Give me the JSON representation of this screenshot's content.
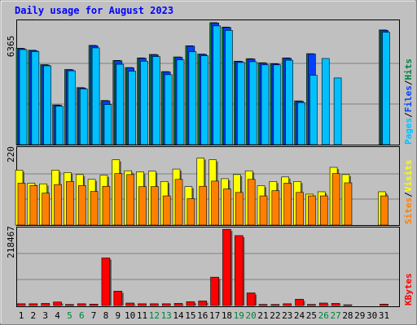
{
  "title": "Daily usage for August 2023",
  "colors": {
    "background": "#c0c0c0",
    "title": "#0000ff",
    "hits": "#008040",
    "files": "#0040ff",
    "pages": "#00c0ff",
    "visits": "#ffff00",
    "sites": "#ff8000",
    "kbytes": "#ff0000",
    "weekend_day_label": "#008040",
    "weekday_label": "#000000"
  },
  "chart_data": [
    {
      "type": "bar",
      "ylabel_max": "6365",
      "ylim": [
        0,
        6365
      ],
      "legend": {
        "pages": "Pages",
        "files": "Files",
        "hits": "Hits",
        "sep": "/"
      },
      "categories": [
        "1",
        "2",
        "3",
        "4",
        "5",
        "6",
        "7",
        "8",
        "9",
        "10",
        "11",
        "12",
        "13",
        "14",
        "15",
        "16",
        "17",
        "18",
        "19",
        "20",
        "21",
        "22",
        "23",
        "24",
        "25",
        "26",
        "27",
        "28",
        "29",
        "30",
        "31"
      ],
      "weekend_days": [
        "5",
        "6",
        "12",
        "13",
        "19",
        "20",
        "26",
        "27"
      ],
      "series": [
        {
          "name": "Hits",
          "values": [
            5000,
            4900,
            4150,
            2060,
            3900,
            2960,
            5150,
            2290,
            4370,
            4000,
            4500,
            4680,
            3790,
            4550,
            5130,
            4700,
            6330,
            6100,
            4330,
            4460,
            4250,
            4200,
            4500,
            2270,
            4720,
            0,
            0,
            0,
            0,
            0,
            5950
          ]
        },
        {
          "name": "Files",
          "values": [
            4980,
            4880,
            4130,
            2040,
            3880,
            2940,
            5130,
            2270,
            4350,
            3980,
            4480,
            4660,
            3770,
            4530,
            5110,
            4680,
            6310,
            6080,
            4310,
            4440,
            4230,
            4180,
            4480,
            2250,
            4700,
            0,
            0,
            0,
            0,
            0,
            5930
          ]
        },
        {
          "name": "Pages",
          "values": [
            4930,
            4830,
            4090,
            1990,
            3830,
            2890,
            5020,
            2080,
            4170,
            3810,
            4330,
            4570,
            3630,
            4400,
            4820,
            4610,
            6160,
            5930,
            4260,
            4300,
            4140,
            4140,
            4380,
            2180,
            3600,
            4470,
            3460,
            0,
            0,
            0,
            5830
          ]
        }
      ]
    },
    {
      "type": "bar",
      "ylabel_max": "220",
      "ylim": [
        0,
        220
      ],
      "legend": {
        "sites": "Sites",
        "visits": "Visits",
        "sep": "/"
      },
      "categories": [
        "1",
        "2",
        "3",
        "4",
        "5",
        "6",
        "7",
        "8",
        "9",
        "10",
        "11",
        "12",
        "13",
        "14",
        "15",
        "16",
        "17",
        "18",
        "19",
        "20",
        "21",
        "22",
        "23",
        "24",
        "25",
        "26",
        "27",
        "28",
        "29",
        "30",
        "31"
      ],
      "series": [
        {
          "name": "Visits",
          "values": [
            160,
            122,
            120,
            160,
            153,
            147,
            133,
            145,
            190,
            158,
            155,
            157,
            127,
            163,
            112,
            195,
            190,
            135,
            147,
            158,
            115,
            127,
            140,
            127,
            90,
            97,
            168,
            147,
            0,
            0,
            97
          ]
        },
        {
          "name": "Sites",
          "values": [
            122,
            115,
            93,
            118,
            127,
            115,
            98,
            113,
            150,
            147,
            112,
            112,
            85,
            133,
            77,
            113,
            128,
            105,
            95,
            133,
            85,
            100,
            122,
            95,
            85,
            85,
            150,
            123,
            0,
            0,
            85
          ]
        }
      ]
    },
    {
      "type": "bar",
      "ylabel_max": "218467",
      "ylim": [
        0,
        218467
      ],
      "legend": {
        "kbytes": "KBytes"
      },
      "categories": [
        "1",
        "2",
        "3",
        "4",
        "5",
        "6",
        "7",
        "8",
        "9",
        "10",
        "11",
        "12",
        "13",
        "14",
        "15",
        "16",
        "17",
        "18",
        "19",
        "20",
        "21",
        "22",
        "23",
        "24",
        "25",
        "26",
        "27",
        "28",
        "29",
        "30",
        "31"
      ],
      "series": [
        {
          "name": "KBytes",
          "values": [
            5000,
            5000,
            6000,
            10000,
            3000,
            5000,
            4000,
            136000,
            41000,
            7000,
            5000,
            5000,
            5000,
            6000,
            11000,
            13000,
            81000,
            218000,
            200000,
            36000,
            3000,
            3000,
            5000,
            18000,
            3000,
            7000,
            6000,
            2000,
            0,
            0,
            4000
          ]
        }
      ]
    }
  ]
}
